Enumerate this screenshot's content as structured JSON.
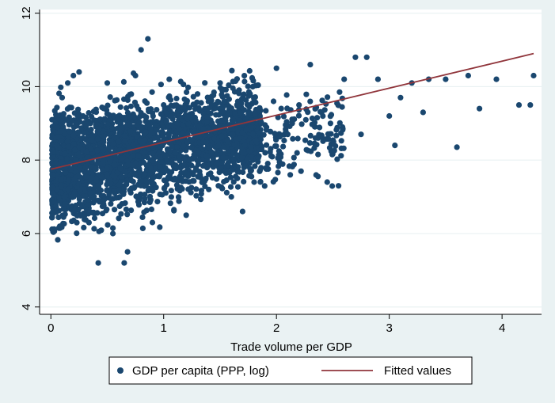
{
  "chart_data": {
    "type": "scatter",
    "title": "",
    "xlabel": "Trade volume per GDP",
    "ylabel": "",
    "xlim": [
      -0.1,
      4.35
    ],
    "ylim": [
      3.8,
      12.1
    ],
    "x_ticks": [
      0,
      1,
      2,
      3,
      4
    ],
    "y_ticks": [
      4,
      6,
      8,
      10,
      12
    ],
    "x_tick_labels": [
      "0",
      "1",
      "2",
      "3",
      "4"
    ],
    "y_tick_labels": [
      "4",
      "6",
      "8",
      "10",
      "12"
    ],
    "grid": "horizontal",
    "legend_position": "bottom",
    "legend": {
      "scatter_label": "GDP per capita (PPP, log)",
      "line_label": "Fitted values"
    },
    "colors": {
      "points": "#1a476f",
      "fitted_line": "#90353b",
      "plot_background": "#ffffff",
      "outer_background": "#eaf2f3",
      "grid": "#eaf2f3"
    },
    "series": [
      {
        "name": "GDP per capita (PPP, log)",
        "kind": "scatter",
        "approximate_points": [
          [
            0.02,
            7.6
          ],
          [
            0.05,
            8.4
          ],
          [
            0.06,
            9.2
          ],
          [
            0.08,
            6.2
          ],
          [
            0.1,
            9.7
          ],
          [
            0.12,
            7.0
          ],
          [
            0.15,
            10.1
          ],
          [
            0.2,
            10.3
          ],
          [
            0.22,
            8.0
          ],
          [
            0.25,
            10.4
          ],
          [
            0.3,
            6.5
          ],
          [
            0.35,
            9.0
          ],
          [
            0.4,
            7.5
          ],
          [
            0.42,
            5.2
          ],
          [
            0.5,
            10.1
          ],
          [
            0.55,
            6.0
          ],
          [
            0.6,
            8.5
          ],
          [
            0.65,
            5.2
          ],
          [
            0.68,
            5.5
          ],
          [
            0.75,
            10.3
          ],
          [
            0.8,
            11.0
          ],
          [
            0.86,
            11.3
          ],
          [
            0.9,
            6.3
          ],
          [
            1.0,
            9.5
          ],
          [
            1.05,
            10.2
          ],
          [
            1.1,
            7.5
          ],
          [
            1.2,
            6.5
          ],
          [
            1.3,
            9.8
          ],
          [
            1.4,
            7.2
          ],
          [
            1.5,
            10.1
          ],
          [
            1.6,
            7.0
          ],
          [
            1.7,
            6.6
          ],
          [
            1.8,
            9.7
          ],
          [
            1.9,
            8.2
          ],
          [
            2.0,
            10.5
          ],
          [
            2.1,
            8.7
          ],
          [
            2.2,
            9.5
          ],
          [
            2.3,
            10.6
          ],
          [
            2.4,
            9.3
          ],
          [
            2.45,
            7.4
          ],
          [
            2.55,
            7.3
          ],
          [
            2.6,
            10.2
          ],
          [
            2.7,
            10.8
          ],
          [
            2.75,
            8.7
          ],
          [
            2.8,
            10.8
          ],
          [
            2.9,
            10.2
          ],
          [
            3.0,
            9.2
          ],
          [
            3.05,
            8.4
          ],
          [
            3.1,
            9.7
          ],
          [
            3.2,
            10.1
          ],
          [
            3.3,
            9.3
          ],
          [
            3.35,
            10.2
          ],
          [
            3.5,
            10.2
          ],
          [
            3.6,
            8.35
          ],
          [
            3.7,
            10.3
          ],
          [
            3.8,
            9.4
          ],
          [
            3.95,
            10.2
          ],
          [
            4.15,
            9.5
          ],
          [
            4.25,
            9.5
          ],
          [
            4.28,
            10.3
          ]
        ]
      },
      {
        "name": "Fitted values",
        "kind": "line",
        "x": [
          0,
          4.28
        ],
        "y": [
          7.75,
          10.9
        ]
      }
    ]
  }
}
